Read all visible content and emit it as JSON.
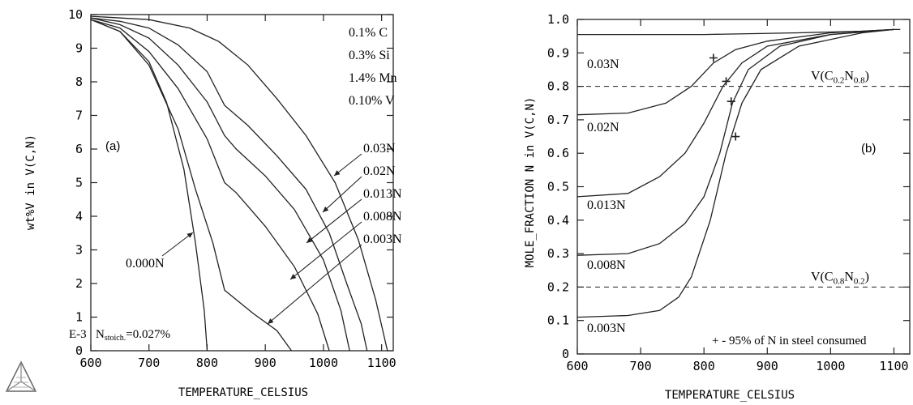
{
  "chart_data": [
    {
      "type": "line",
      "panel_label": "(a)",
      "xlabel": "TEMPERATURE_CELSIUS",
      "ylabel": "wt%V in V(C,N)",
      "xlim": [
        600,
        1120
      ],
      "ylim": [
        0,
        10
      ],
      "x_ticks": [
        "600",
        "700",
        "800",
        "900",
        "1000",
        "1100"
      ],
      "y_ticks": [
        "0",
        "1",
        "2",
        "3",
        "4",
        "5",
        "6",
        "7",
        "8",
        "9",
        "10"
      ],
      "y_exponent_label": "E-3",
      "composition": [
        "0.1% C",
        "0.3% Si",
        "1.4% Mn",
        "0.10% V"
      ],
      "stoich_label_main": "N",
      "stoich_label_sub": "stoich.",
      "stoich_label_value": "=0.027%",
      "grid": false,
      "series": [
        {
          "name": "0.000N",
          "points": [
            [
              600,
              9.85
            ],
            [
              650,
              9.5
            ],
            [
              700,
              8.6
            ],
            [
              730,
              7.4
            ],
            [
              760,
              5.4
            ],
            [
              780,
              3.2
            ],
            [
              795,
              1.2
            ],
            [
              800,
              0
            ]
          ]
        },
        {
          "name": "0.003N",
          "points": [
            [
              600,
              9.85
            ],
            [
              650,
              9.5
            ],
            [
              700,
              8.5
            ],
            [
              750,
              6.6
            ],
            [
              780,
              4.8
            ],
            [
              810,
              3.2
            ],
            [
              830,
              1.8
            ],
            [
              880,
              1.1
            ],
            [
              920,
              0.6
            ],
            [
              945,
              0
            ]
          ]
        },
        {
          "name": "0.008N",
          "points": [
            [
              600,
              9.85
            ],
            [
              650,
              9.6
            ],
            [
              700,
              8.9
            ],
            [
              750,
              7.8
            ],
            [
              800,
              6.3
            ],
            [
              830,
              5.0
            ],
            [
              850,
              4.7
            ],
            [
              900,
              3.7
            ],
            [
              950,
              2.5
            ],
            [
              990,
              1.1
            ],
            [
              1010,
              0
            ]
          ]
        },
        {
          "name": "0.013N",
          "points": [
            [
              600,
              9.9
            ],
            [
              650,
              9.7
            ],
            [
              700,
              9.3
            ],
            [
              750,
              8.5
            ],
            [
              800,
              7.4
            ],
            [
              830,
              6.4
            ],
            [
              850,
              6.0
            ],
            [
              900,
              5.2
            ],
            [
              950,
              4.2
            ],
            [
              1000,
              2.7
            ],
            [
              1030,
              1.2
            ],
            [
              1045,
              0
            ]
          ]
        },
        {
          "name": "0.02N",
          "points": [
            [
              600,
              9.9
            ],
            [
              650,
              9.8
            ],
            [
              700,
              9.6
            ],
            [
              750,
              9.1
            ],
            [
              800,
              8.3
            ],
            [
              830,
              7.3
            ],
            [
              870,
              6.7
            ],
            [
              920,
              5.8
            ],
            [
              970,
              4.8
            ],
            [
              1010,
              3.5
            ],
            [
              1040,
              2.0
            ],
            [
              1065,
              0.8
            ],
            [
              1075,
              0
            ]
          ]
        },
        {
          "name": "0.03N",
          "points": [
            [
              600,
              9.95
            ],
            [
              700,
              9.85
            ],
            [
              770,
              9.6
            ],
            [
              820,
              9.2
            ],
            [
              870,
              8.5
            ],
            [
              920,
              7.5
            ],
            [
              970,
              6.4
            ],
            [
              1020,
              5.0
            ],
            [
              1060,
              3.3
            ],
            [
              1090,
              1.5
            ],
            [
              1110,
              0
            ]
          ]
        }
      ]
    },
    {
      "type": "line",
      "panel_label": "(b)",
      "xlabel": "TEMPERATURE_CELSIUS",
      "ylabel": "MOLE_FRACTION N in V(C,N)",
      "xlim": [
        600,
        1125
      ],
      "ylim": [
        0,
        1.0
      ],
      "x_ticks": [
        "600",
        "700",
        "800",
        "900",
        "1000",
        "1100"
      ],
      "y_ticks": [
        "0",
        "0.1",
        "0.2",
        "0.3",
        "0.4",
        "0.5",
        "0.6",
        "0.7",
        "0.8",
        "0.9",
        "1.0"
      ],
      "reference_lines": [
        {
          "y": 0.8,
          "label_base": "V(C",
          "label_sub1": "0.2",
          "label_mid": "N",
          "label_sub2": "0.8",
          "label_end": ")"
        },
        {
          "y": 0.2,
          "label_base": "V(C",
          "label_sub1": "0.8",
          "label_mid": "N",
          "label_sub2": "0.2",
          "label_end": ")"
        }
      ],
      "annotation": "+ - 95% of N in steel consumed",
      "grid": false,
      "series": [
        {
          "name": "0.03N",
          "points": [
            [
              600,
              0.955
            ],
            [
              800,
              0.955
            ],
            [
              950,
              0.96
            ],
            [
              1050,
              0.965
            ],
            [
              1100,
              0.97
            ],
            [
              1110,
              0.97
            ]
          ]
        },
        {
          "name": "0.02N",
          "points": [
            [
              600,
              0.715
            ],
            [
              680,
              0.72
            ],
            [
              740,
              0.75
            ],
            [
              780,
              0.8
            ],
            [
              815,
              0.87
            ],
            [
              850,
              0.91
            ],
            [
              900,
              0.935
            ],
            [
              1000,
              0.96
            ],
            [
              1100,
              0.97
            ]
          ]
        },
        {
          "name": "0.013N",
          "points": [
            [
              600,
              0.47
            ],
            [
              680,
              0.48
            ],
            [
              730,
              0.53
            ],
            [
              770,
              0.6
            ],
            [
              800,
              0.69
            ],
            [
              830,
              0.8
            ],
            [
              860,
              0.87
            ],
            [
              900,
              0.92
            ],
            [
              1000,
              0.955
            ],
            [
              1100,
              0.97
            ]
          ]
        },
        {
          "name": "0.008N",
          "points": [
            [
              600,
              0.295
            ],
            [
              680,
              0.3
            ],
            [
              730,
              0.33
            ],
            [
              770,
              0.39
            ],
            [
              800,
              0.47
            ],
            [
              825,
              0.6
            ],
            [
              845,
              0.75
            ],
            [
              870,
              0.85
            ],
            [
              920,
              0.92
            ],
            [
              1000,
              0.955
            ],
            [
              1100,
              0.97
            ]
          ]
        },
        {
          "name": "0.003N",
          "points": [
            [
              600,
              0.11
            ],
            [
              680,
              0.115
            ],
            [
              730,
              0.13
            ],
            [
              760,
              0.17
            ],
            [
              780,
              0.23
            ],
            [
              810,
              0.4
            ],
            [
              835,
              0.6
            ],
            [
              860,
              0.75
            ],
            [
              890,
              0.85
            ],
            [
              950,
              0.92
            ],
            [
              1050,
              0.96
            ],
            [
              1100,
              0.97
            ]
          ]
        }
      ],
      "markers": [
        [
          815,
          0.885
        ],
        [
          835,
          0.815
        ],
        [
          843,
          0.755
        ],
        [
          850,
          0.65
        ]
      ]
    }
  ]
}
